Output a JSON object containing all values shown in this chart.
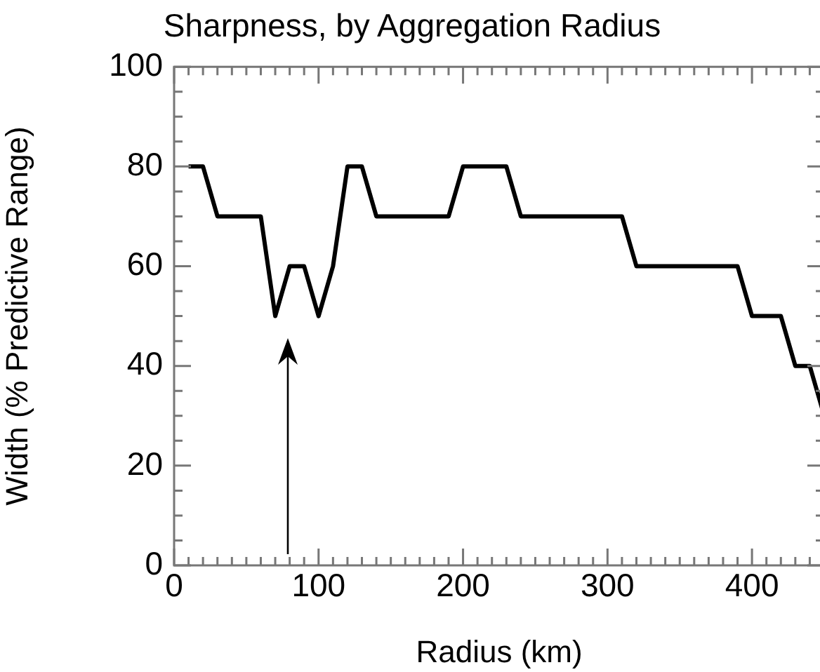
{
  "chart_data": {
    "type": "line",
    "title": "Sharpness, by Aggregation Radius",
    "xlabel": "Radius (km)",
    "ylabel": "Width (% Predictive Range)",
    "x": [
      10,
      20,
      30,
      60,
      70,
      80,
      90,
      100,
      110,
      120,
      130,
      140,
      190,
      200,
      230,
      240,
      310,
      320,
      390,
      400,
      420,
      430,
      440,
      450
    ],
    "values": [
      80,
      80,
      70,
      70,
      50,
      60,
      60,
      50,
      60,
      80,
      80,
      70,
      70,
      80,
      80,
      70,
      70,
      60,
      60,
      50,
      50,
      40,
      40,
      30
    ],
    "color": "#000000",
    "xlim": [
      0,
      450
    ],
    "xticks": [
      0,
      {
        "value": 10,
        "label": null
      },
      {
        "value": 20,
        "label": null
      },
      {
        "value": 30,
        "label": null
      },
      {
        "value": 40,
        "label": null
      },
      {
        "value": 50,
        "label": null
      },
      {
        "value": 60,
        "label": null
      },
      {
        "value": 70,
        "label": null
      },
      {
        "value": 80,
        "label": null
      },
      {
        "value": 90,
        "label": null
      },
      100,
      {
        "value": 110,
        "label": null
      },
      {
        "value": 120,
        "label": null
      },
      {
        "value": 130,
        "label": null
      },
      {
        "value": 140,
        "label": null
      },
      {
        "value": 150,
        "label": null
      },
      {
        "value": 160,
        "label": null
      },
      {
        "value": 170,
        "label": null
      },
      {
        "value": 180,
        "label": null
      },
      {
        "value": 190,
        "label": null
      },
      200,
      {
        "value": 210,
        "label": null
      },
      {
        "value": 220,
        "label": null
      },
      {
        "value": 230,
        "label": null
      },
      {
        "value": 240,
        "label": null
      },
      {
        "value": 250,
        "label": null
      },
      {
        "value": 260,
        "label": null
      },
      {
        "value": 270,
        "label": null
      },
      {
        "value": 280,
        "label": null
      },
      {
        "value": 290,
        "label": null
      },
      300,
      {
        "value": 310,
        "label": null
      },
      {
        "value": 320,
        "label": null
      },
      {
        "value": 330,
        "label": null
      },
      {
        "value": 340,
        "label": null
      },
      {
        "value": 350,
        "label": null
      },
      {
        "value": 360,
        "label": null
      },
      {
        "value": 370,
        "label": null
      },
      {
        "value": 380,
        "label": null
      },
      {
        "value": 390,
        "label": null
      },
      400,
      {
        "value": 410,
        "label": null
      },
      {
        "value": 420,
        "label": null
      },
      {
        "value": 430,
        "label": null
      },
      {
        "value": 440,
        "label": null
      },
      {
        "value": 450,
        "label": null
      }
    ],
    "ylim": [
      0,
      100
    ],
    "yticks": [
      0,
      {
        "value": 5,
        "label": null
      },
      {
        "value": 10,
        "label": null
      },
      {
        "value": 15,
        "label": null
      },
      20,
      {
        "value": 25,
        "label": null
      },
      {
        "value": 30,
        "label": null
      },
      {
        "value": 35,
        "label": null
      },
      40,
      {
        "value": 45,
        "label": null
      },
      {
        "value": 50,
        "label": null
      },
      {
        "value": 55,
        "label": null
      },
      60,
      {
        "value": 65,
        "label": null
      },
      {
        "value": 70,
        "label": null
      },
      {
        "value": 75,
        "label": null
      },
      80,
      {
        "value": 85,
        "label": null
      },
      {
        "value": 90,
        "label": null
      },
      {
        "value": 95,
        "label": null
      },
      100
    ],
    "grid": false,
    "legend": false,
    "marker": "none",
    "line_style": "solid"
  }
}
